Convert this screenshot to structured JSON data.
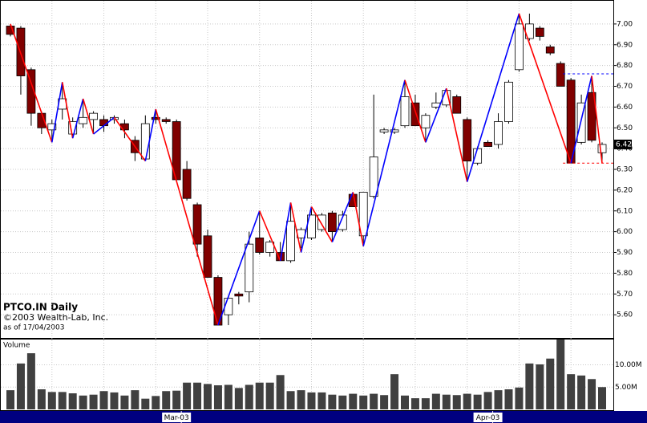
{
  "chart_data": {
    "type": "candlestick",
    "title": "PTCO.IN Daily",
    "subtitle": "©2003 Wealth-Lab, Inc.",
    "note": "as of 17/04/2003",
    "volume_title": "Volume",
    "categories": [
      null,
      null,
      null,
      null,
      null,
      null,
      null,
      null,
      null,
      null,
      null,
      null,
      null,
      null,
      null,
      null,
      "Mar-03",
      null,
      null,
      null,
      null,
      null,
      null,
      null,
      null,
      null,
      null,
      null,
      null,
      null,
      null,
      null,
      null,
      null,
      null,
      null,
      null,
      null,
      null,
      null,
      null,
      null,
      null,
      null,
      null,
      null,
      "Apr-03",
      null,
      null,
      null,
      null,
      null,
      null,
      null,
      null,
      null,
      null,
      null
    ],
    "open": [
      6.99,
      6.98,
      6.78,
      6.57,
      6.49,
      6.59,
      6.47,
      6.52,
      6.54,
      6.54,
      6.54,
      6.52,
      6.44,
      6.35,
      6.55,
      6.54,
      6.53,
      6.3,
      6.13,
      5.98,
      5.78,
      5.6,
      5.7,
      5.71,
      5.97,
      5.9,
      5.9,
      5.86,
      5.97,
      5.97,
      6.01,
      6.09,
      6.01,
      6.18,
      5.98,
      6.17,
      6.48,
      6.48,
      6.51,
      6.62,
      6.5,
      6.6,
      6.61,
      6.65,
      6.54,
      6.33,
      6.43,
      6.42,
      6.53,
      6.78,
      6.93,
      6.98,
      6.89,
      6.81,
      6.73,
      6.43,
      6.67,
      6.38
    ],
    "high": [
      7.0,
      6.99,
      6.79,
      6.58,
      6.54,
      6.72,
      6.55,
      6.64,
      6.58,
      6.56,
      6.56,
      6.54,
      6.46,
      6.56,
      6.59,
      6.55,
      6.54,
      6.34,
      6.14,
      6.01,
      5.79,
      5.69,
      5.71,
      6.0,
      6.1,
      5.96,
      5.95,
      6.14,
      6.02,
      6.12,
      6.09,
      6.1,
      6.1,
      6.19,
      6.19,
      6.66,
      6.5,
      6.5,
      6.73,
      6.66,
      6.57,
      6.67,
      6.69,
      6.66,
      6.55,
      6.41,
      6.44,
      6.57,
      6.73,
      7.05,
      7.05,
      6.99,
      6.9,
      6.82,
      6.74,
      6.66,
      6.75,
      6.43
    ],
    "low": [
      6.94,
      6.66,
      6.51,
      6.47,
      6.43,
      6.54,
      6.45,
      6.5,
      6.47,
      6.48,
      6.52,
      6.45,
      6.34,
      6.34,
      6.52,
      6.52,
      6.25,
      6.15,
      5.88,
      5.78,
      5.55,
      5.55,
      5.65,
      5.66,
      5.89,
      5.88,
      5.86,
      5.85,
      5.92,
      5.96,
      6.0,
      5.95,
      6.0,
      6.12,
      5.93,
      6.16,
      6.47,
      6.47,
      6.5,
      6.51,
      6.43,
      6.59,
      6.6,
      6.57,
      6.24,
      6.32,
      6.41,
      6.4,
      6.52,
      6.77,
      6.92,
      6.92,
      6.85,
      6.7,
      6.33,
      6.42,
      6.43,
      6.33
    ],
    "close": [
      6.95,
      6.75,
      6.57,
      6.5,
      6.52,
      6.64,
      6.53,
      6.55,
      6.57,
      6.51,
      6.55,
      6.49,
      6.38,
      6.52,
      6.54,
      6.53,
      6.25,
      6.16,
      5.94,
      5.78,
      5.55,
      5.68,
      5.69,
      5.94,
      5.9,
      5.95,
      5.86,
      6.05,
      6.01,
      6.08,
      6.08,
      6.0,
      6.08,
      6.12,
      6.19,
      6.36,
      6.49,
      6.49,
      6.65,
      6.51,
      6.56,
      6.62,
      6.68,
      6.57,
      6.34,
      6.4,
      6.41,
      6.53,
      6.72,
      7.0,
      7.0,
      6.94,
      6.86,
      6.7,
      6.33,
      6.62,
      6.44,
      6.42
    ],
    "volume": [
      4.3,
      10.3,
      12.6,
      4.5,
      3.9,
      3.9,
      3.6,
      3.1,
      3.3,
      4.1,
      3.8,
      3.1,
      4.3,
      2.4,
      3.0,
      4.1,
      4.2,
      6.0,
      6.0,
      5.7,
      5.4,
      5.5,
      4.8,
      5.5,
      6.0,
      6.0,
      7.7,
      4.1,
      4.3,
      3.8,
      3.8,
      3.3,
      3.1,
      3.5,
      3.1,
      3.5,
      3.2,
      7.9,
      3.1,
      2.5,
      2.5,
      3.5,
      3.3,
      3.2,
      3.5,
      3.3,
      3.9,
      4.3,
      4.5,
      4.9,
      10.3,
      10.1,
      11.4,
      15.7,
      7.9,
      7.6,
      6.8,
      5.0
    ],
    "zigzag": {
      "index": [
        0,
        4,
        5,
        6,
        7,
        8,
        10,
        13,
        14,
        20,
        24,
        26,
        27,
        28,
        29,
        31,
        33,
        34,
        38,
        40,
        42,
        44,
        49,
        54,
        56,
        57
      ],
      "price": [
        7.0,
        6.43,
        6.72,
        6.45,
        6.64,
        6.47,
        6.55,
        6.34,
        6.59,
        5.55,
        6.1,
        5.86,
        6.14,
        5.9,
        6.12,
        5.95,
        6.19,
        5.93,
        6.73,
        6.43,
        6.69,
        6.24,
        7.05,
        6.33,
        6.75,
        6.33
      ]
    },
    "levels": [
      6.76,
      6.33
    ],
    "last_price": 6.42,
    "up_color": "#ffffff",
    "down_color": "#800000",
    "rise_color": "#0000ff",
    "fall_color": "#ff0000",
    "volume_color": "#404040",
    "ylim": [
      5.5,
      7.1
    ],
    "yticks": [
      {
        "value": 7.0,
        "label": "7.00"
      },
      {
        "value": 6.9,
        "label": "6.90"
      },
      {
        "value": 6.8,
        "label": "6.80"
      },
      {
        "value": 6.7,
        "label": "6.70"
      },
      {
        "value": 6.6,
        "label": "6.60"
      },
      {
        "value": 6.5,
        "label": "6.50"
      },
      {
        "value": 6.4,
        "label": "6.40"
      },
      {
        "value": 6.3,
        "label": "6.30"
      },
      {
        "value": 6.2,
        "label": "6.20"
      },
      {
        "value": 6.1,
        "label": "6.10"
      },
      {
        "value": 6.0,
        "label": "6.00"
      },
      {
        "value": 5.9,
        "label": "5.90"
      },
      {
        "value": 5.8,
        "label": "5.80"
      },
      {
        "value": 5.7,
        "label": "5.70"
      },
      {
        "value": 5.6,
        "label": "5.60"
      }
    ],
    "vlim": [
      0,
      15.5
    ],
    "vticks": [
      {
        "value": 10,
        "label": "10.00M"
      },
      {
        "value": 5,
        "label": "5.00M"
      }
    ],
    "grid": true
  }
}
